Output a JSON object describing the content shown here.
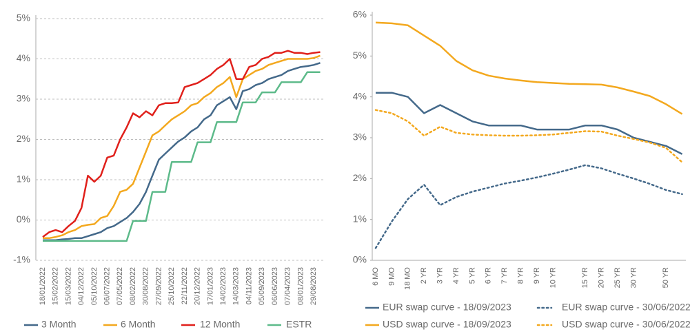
{
  "chart_data": [
    {
      "type": "line",
      "categories": [
        "18/01/2022",
        null,
        "15/02/2022",
        null,
        "15/03/2022",
        null,
        "04/12/2022",
        null,
        "05/10/2022",
        null,
        "06/07/2022",
        null,
        "07/05/2022",
        null,
        "08/02/2022",
        null,
        "30/08/2022",
        null,
        "27/09/2022",
        null,
        "25/10/2022",
        null,
        "22/11/2022",
        null,
        "20/12/2022",
        null,
        "17/01/2023",
        null,
        "14/02/2023",
        null,
        "14/03/2023",
        null,
        "04/11/2023",
        null,
        "05/09/2023",
        null,
        "06/06/2023",
        null,
        "07/04/2023",
        null,
        "08/01/2023",
        null,
        "29/08/2023",
        null
      ],
      "series": [
        {
          "name": "3 Month",
          "color": "#44698a",
          "values": [
            -0.5,
            -0.5,
            -0.5,
            -0.48,
            -0.47,
            -0.45,
            -0.45,
            -0.4,
            -0.35,
            -0.3,
            -0.2,
            -0.15,
            -0.05,
            0.05,
            0.2,
            0.4,
            0.7,
            1.1,
            1.5,
            1.65,
            1.8,
            1.95,
            2.05,
            2.2,
            2.3,
            2.5,
            2.6,
            2.85,
            2.95,
            3.05,
            2.75,
            3.2,
            3.25,
            3.35,
            3.4,
            3.5,
            3.55,
            3.6,
            3.7,
            3.75,
            3.8,
            3.82,
            3.85,
            3.9
          ]
        },
        {
          "name": "6 Month",
          "color": "#f3a81e",
          "values": [
            -0.45,
            -0.45,
            -0.42,
            -0.38,
            -0.3,
            -0.25,
            -0.15,
            -0.12,
            -0.1,
            0.05,
            0.1,
            0.35,
            0.7,
            0.75,
            0.9,
            1.3,
            1.7,
            2.1,
            2.2,
            2.35,
            2.5,
            2.6,
            2.7,
            2.85,
            2.9,
            3.05,
            3.15,
            3.3,
            3.4,
            3.55,
            3.05,
            3.5,
            3.6,
            3.7,
            3.75,
            3.85,
            3.9,
            3.95,
            4.0,
            4.0,
            4.0,
            4.0,
            4.02,
            4.08
          ]
        },
        {
          "name": "12 Month",
          "color": "#e0201b",
          "values": [
            -0.42,
            -0.3,
            -0.25,
            -0.3,
            -0.15,
            -0.02,
            0.3,
            1.1,
            0.95,
            1.1,
            1.55,
            1.6,
            2.0,
            2.3,
            2.65,
            2.55,
            2.7,
            2.6,
            2.85,
            2.9,
            2.9,
            2.92,
            3.3,
            3.35,
            3.4,
            3.5,
            3.6,
            3.75,
            3.85,
            4.0,
            3.5,
            3.5,
            3.8,
            3.85,
            4.0,
            4.05,
            4.15,
            4.15,
            4.2,
            4.15,
            4.15,
            4.12,
            4.15,
            4.17
          ]
        },
        {
          "name": "ESTR",
          "color": "#5dba8a",
          "values": [
            -0.52,
            -0.52,
            -0.52,
            -0.52,
            -0.52,
            -0.52,
            -0.52,
            -0.52,
            -0.52,
            -0.52,
            -0.52,
            -0.52,
            -0.52,
            -0.52,
            -0.02,
            -0.02,
            -0.02,
            0.7,
            0.7,
            0.7,
            1.44,
            1.44,
            1.44,
            1.44,
            1.93,
            1.93,
            1.93,
            2.43,
            2.43,
            2.43,
            2.43,
            2.92,
            2.92,
            2.92,
            3.17,
            3.17,
            3.17,
            3.42,
            3.42,
            3.42,
            3.42,
            3.67,
            3.67,
            3.67
          ]
        }
      ],
      "ylim": [
        -1,
        5
      ],
      "yticks": [
        {
          "value": -1,
          "label": "-1%"
        },
        {
          "value": 0,
          "label": "0%"
        },
        {
          "value": 1,
          "label": "1%"
        },
        {
          "value": 2,
          "label": "2%"
        },
        {
          "value": 3,
          "label": "3%"
        },
        {
          "value": 4,
          "label": "4%"
        },
        {
          "value": 5,
          "label": "5%"
        }
      ],
      "grid": true,
      "legend": "bottom"
    },
    {
      "type": "line",
      "categories": [
        "6 MO",
        "9 MO",
        "18 MO",
        "2 YR",
        "3 YR",
        "4 YR",
        "5 YR",
        "6 YR",
        "7 YR",
        "8 YR",
        "9 YR",
        "10 YR",
        null,
        "15 YR",
        "20 YR",
        "25 YR",
        "30 YR",
        null,
        "50 YR",
        null
      ],
      "series": [
        {
          "name": "EUR swap curve - 18/09/2023",
          "color": "#44698a",
          "linestyle": "solid",
          "values": [
            4.1,
            4.1,
            4.0,
            3.6,
            3.8,
            3.6,
            3.4,
            3.3,
            3.3,
            3.3,
            3.2,
            3.2,
            3.2,
            3.3,
            3.3,
            3.2,
            3.0,
            2.9,
            2.8,
            2.6
          ]
        },
        {
          "name": "EUR swap curve - 30/06/2022",
          "color": "#44698a",
          "linestyle": "dotted",
          "values": [
            0.3,
            0.95,
            1.5,
            1.85,
            1.35,
            1.55,
            1.68,
            1.78,
            1.88,
            1.95,
            2.03,
            2.12,
            2.22,
            2.33,
            2.25,
            2.12,
            2.0,
            1.87,
            1.72,
            1.62
          ]
        },
        {
          "name": "USD swap curve - 18/09/2023",
          "color": "#f3a81e",
          "linestyle": "solid",
          "values": [
            5.82,
            5.8,
            5.75,
            5.5,
            5.25,
            4.88,
            4.65,
            4.52,
            4.45,
            4.4,
            4.36,
            4.34,
            4.32,
            4.31,
            4.3,
            4.23,
            4.13,
            4.02,
            3.82,
            3.58
          ]
        },
        {
          "name": "USD swap curve - 30/06/2022",
          "color": "#f3a81e",
          "linestyle": "dotted",
          "values": [
            3.68,
            3.6,
            3.4,
            3.05,
            3.27,
            3.12,
            3.08,
            3.06,
            3.05,
            3.05,
            3.06,
            3.08,
            3.12,
            3.16,
            3.15,
            3.05,
            2.97,
            2.88,
            2.75,
            2.4
          ]
        }
      ],
      "ylim": [
        0,
        6
      ],
      "yticks": [
        {
          "value": 0,
          "label": "0%"
        },
        {
          "value": 1,
          "label": "1%"
        },
        {
          "value": 2,
          "label": "2%"
        },
        {
          "value": 3,
          "label": "3%"
        },
        {
          "value": 4,
          "label": "4%"
        },
        {
          "value": 5,
          "label": "5%"
        },
        {
          "value": 6,
          "label": "6%"
        }
      ],
      "grid": false,
      "legend": "bottom"
    }
  ]
}
